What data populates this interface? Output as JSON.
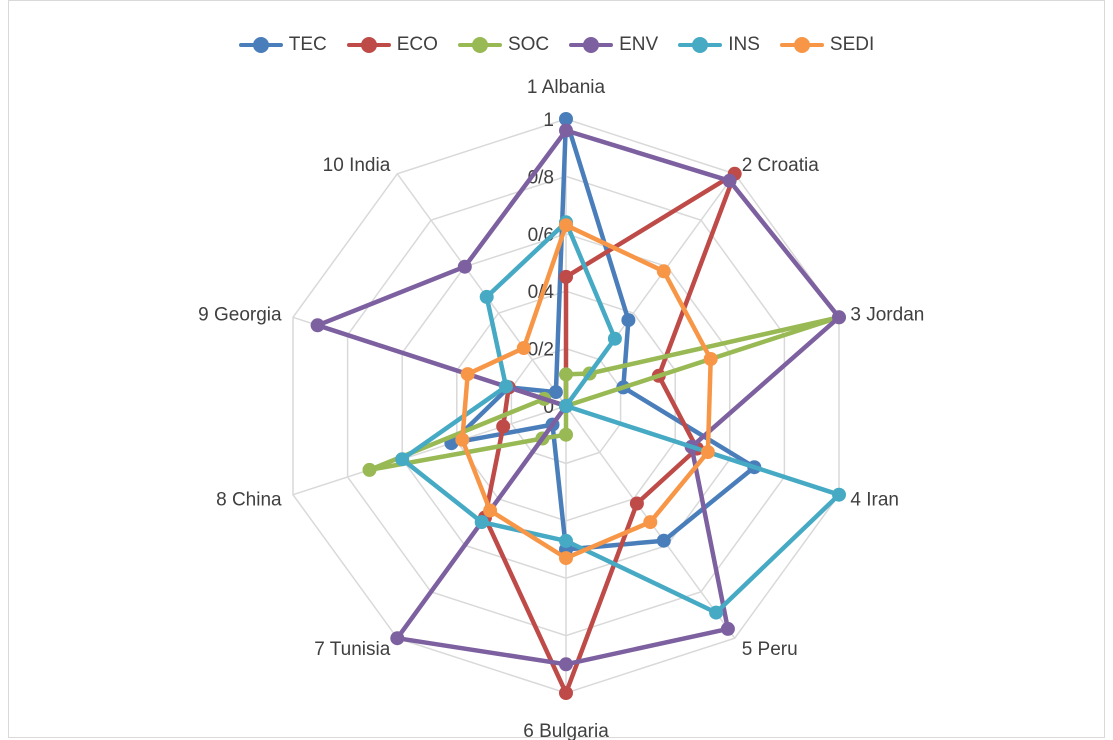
{
  "chart_data": {
    "type": "radar",
    "categories": [
      "1 Albania",
      "2 Croatia",
      "3 Jordan",
      "4 Iran",
      "5 Peru",
      "6 Bulgaria",
      "7 Tunisia",
      "8 China",
      "9 Georgia",
      "10 India"
    ],
    "tick_labels": [
      "0",
      "0/2",
      "0/4",
      "0/6",
      "0/8",
      "1"
    ],
    "rlim": [
      0,
      1
    ],
    "legend_position": "top",
    "series": [
      {
        "name": "TEC",
        "color": "#4a7ebb",
        "values": [
          1.0,
          0.37,
          0.21,
          0.69,
          0.58,
          0.5,
          0.08,
          0.42,
          0.21,
          0.06
        ]
      },
      {
        "name": "ECO",
        "color": "#be4b48",
        "values": [
          0.45,
          1.0,
          0.34,
          0.48,
          0.42,
          1.0,
          0.48,
          0.23,
          0.21,
          0.0
        ]
      },
      {
        "name": "SOC",
        "color": "#98b954",
        "values": [
          0.11,
          0.14,
          1.0,
          0.0,
          0.0,
          0.1,
          0.14,
          0.72,
          0.08,
          0.0
        ]
      },
      {
        "name": "ENV",
        "color": "#7d60a0",
        "values": [
          0.96,
          0.97,
          1.0,
          0.46,
          0.96,
          0.9,
          1.0,
          0.0,
          0.91,
          0.6
        ]
      },
      {
        "name": "INS",
        "color": "#46aac5",
        "values": [
          0.64,
          0.29,
          0.0,
          1.0,
          0.89,
          0.47,
          0.5,
          0.6,
          0.22,
          0.47
        ]
      },
      {
        "name": "SEDI",
        "color": "#f79646",
        "values": [
          0.63,
          0.58,
          0.53,
          0.52,
          0.5,
          0.53,
          0.45,
          0.38,
          0.36,
          0.25
        ]
      }
    ]
  }
}
